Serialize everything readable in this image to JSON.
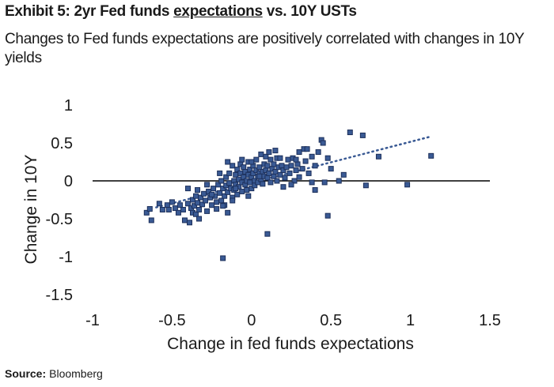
{
  "header": {
    "title_prefix": "Exhibit 5: 2yr Fed funds ",
    "title_underlined": "expectations",
    "title_suffix": " vs. 10Y USTs",
    "subtitle": "Changes to Fed funds expectations are positively correlated with changes in 10Y yields"
  },
  "footer": {
    "source_label": "Source:",
    "source_value": "Bloomberg"
  },
  "colors": {
    "marker_fill": "#3a5a94",
    "marker_edge": "#1c2f5a",
    "trendline": "#3a5a94",
    "axis": "#000000"
  },
  "chart_data": {
    "type": "scatter",
    "title": "",
    "xlabel": "Change in fed funds expectations",
    "ylabel": "Change in 10Y",
    "xlim": [
      -1,
      1.5
    ],
    "ylim": [
      -1.5,
      1
    ],
    "xticks": [
      -1,
      -0.5,
      0,
      0.5,
      1,
      1.5
    ],
    "xtick_labels": [
      "-1",
      "-0.5",
      "0",
      "0.5",
      "1",
      "1.5"
    ],
    "yticks": [
      1,
      0.5,
      0,
      -0.5,
      -1,
      -1.5
    ],
    "ytick_labels": [
      "1",
      "0.5",
      "0",
      "-0.5",
      "-1",
      "-1.5"
    ],
    "grid": false,
    "trendline": {
      "style": "dotted",
      "x": [
        -0.6,
        1.12
      ],
      "y": [
        -0.35,
        0.58
      ]
    },
    "series": [
      {
        "points": [
          [
            -0.66,
            -0.42
          ],
          [
            -0.64,
            -0.37
          ],
          [
            -0.63,
            -0.52
          ],
          [
            -0.58,
            -0.3
          ],
          [
            -0.56,
            -0.38
          ],
          [
            -0.53,
            -0.32
          ],
          [
            -0.52,
            -0.38
          ],
          [
            -0.5,
            -0.28
          ],
          [
            -0.48,
            -0.36
          ],
          [
            -0.46,
            -0.42
          ],
          [
            -0.45,
            -0.32
          ],
          [
            -0.43,
            -0.38
          ],
          [
            -0.42,
            -0.52
          ],
          [
            -0.4,
            -0.3
          ],
          [
            -0.39,
            -0.55
          ],
          [
            -0.38,
            -0.36
          ],
          [
            -0.37,
            -0.25
          ],
          [
            -0.37,
            -0.42
          ],
          [
            -0.36,
            -0.33
          ],
          [
            -0.35,
            -0.44
          ],
          [
            -0.35,
            -0.2
          ],
          [
            -0.34,
            -0.29
          ],
          [
            -0.34,
            -0.12
          ],
          [
            -0.33,
            -0.38
          ],
          [
            -0.33,
            -0.5
          ],
          [
            -0.32,
            -0.22
          ],
          [
            -0.31,
            -0.31
          ],
          [
            -0.3,
            -0.17
          ],
          [
            -0.29,
            -0.26
          ],
          [
            -0.28,
            -0.4
          ],
          [
            -0.27,
            -0.14
          ],
          [
            -0.26,
            -0.22
          ],
          [
            -0.25,
            -0.32
          ],
          [
            -0.24,
            -0.1
          ],
          [
            -0.23,
            -0.2
          ],
          [
            -0.22,
            -0.28
          ],
          [
            -0.22,
            -0.37
          ],
          [
            -0.21,
            -0.05
          ],
          [
            -0.2,
            -0.16
          ],
          [
            -0.19,
            -0.26
          ],
          [
            -0.19,
            0.0
          ],
          [
            -0.18,
            -0.1
          ],
          [
            -0.17,
            -0.2
          ],
          [
            -0.17,
            -0.32
          ],
          [
            -0.16,
            0.05
          ],
          [
            -0.16,
            -0.06
          ],
          [
            -0.15,
            -0.15
          ],
          [
            -0.15,
            -0.42
          ],
          [
            -0.14,
            0.1
          ],
          [
            -0.14,
            -0.03
          ],
          [
            -0.13,
            -0.1
          ],
          [
            -0.12,
            -0.22
          ],
          [
            -0.12,
            0.2
          ],
          [
            -0.11,
            0.0
          ],
          [
            -0.11,
            -0.12
          ],
          [
            -0.1,
            0.08
          ],
          [
            -0.1,
            -0.05
          ],
          [
            -0.09,
            -0.18
          ],
          [
            -0.09,
            0.15
          ],
          [
            -0.08,
            0.02
          ],
          [
            -0.08,
            -0.08
          ],
          [
            -0.07,
            0.22
          ],
          [
            -0.07,
            0.1
          ],
          [
            -0.06,
            -0.02
          ],
          [
            -0.06,
            -0.14
          ],
          [
            -0.05,
            0.05
          ],
          [
            -0.05,
            0.18
          ],
          [
            -0.04,
            -0.05
          ],
          [
            -0.04,
            0.12
          ],
          [
            -0.03,
            0.0
          ],
          [
            -0.03,
            -0.12
          ],
          [
            -0.02,
            0.08
          ],
          [
            -0.02,
            0.25
          ],
          [
            -0.01,
            -0.02
          ],
          [
            -0.01,
            0.15
          ],
          [
            0.0,
            0.05
          ],
          [
            0.0,
            -0.1
          ],
          [
            0.01,
            0.2
          ],
          [
            0.01,
            0.1
          ],
          [
            0.02,
            0.0
          ],
          [
            0.02,
            -0.06
          ],
          [
            0.03,
            0.14
          ],
          [
            0.03,
            0.28
          ],
          [
            0.04,
            0.06
          ],
          [
            0.04,
            -0.02
          ],
          [
            0.05,
            0.18
          ],
          [
            0.05,
            0.1
          ],
          [
            0.06,
            0.02
          ],
          [
            0.06,
            0.35
          ],
          [
            0.07,
            0.12
          ],
          [
            0.07,
            -0.04
          ],
          [
            0.08,
            0.22
          ],
          [
            0.08,
            0.06
          ],
          [
            0.09,
            0.32
          ],
          [
            0.09,
            0.14
          ],
          [
            0.1,
            0.04
          ],
          [
            0.1,
            0.2
          ],
          [
            0.11,
            0.1
          ],
          [
            0.12,
            0.28
          ],
          [
            0.12,
            -0.02
          ],
          [
            0.13,
            0.16
          ],
          [
            0.14,
            0.06
          ],
          [
            0.14,
            0.22
          ],
          [
            0.15,
            0.12
          ],
          [
            0.16,
            0.0
          ],
          [
            0.16,
            0.3
          ],
          [
            0.17,
            0.18
          ],
          [
            0.18,
            0.08
          ],
          [
            0.19,
            0.2
          ],
          [
            0.2,
            0.14
          ],
          [
            0.21,
            0.04
          ],
          [
            0.22,
            0.18
          ],
          [
            0.23,
            0.28
          ],
          [
            0.24,
            0.1
          ],
          [
            0.25,
            0.2
          ],
          [
            0.26,
            0.3
          ],
          [
            0.27,
            0.0
          ],
          [
            0.28,
            0.14
          ],
          [
            0.29,
            0.22
          ],
          [
            0.3,
            0.38
          ],
          [
            0.32,
            0.16
          ],
          [
            0.33,
            0.42
          ],
          [
            0.34,
            0.26
          ],
          [
            0.36,
            0.1
          ],
          [
            0.38,
            0.32
          ],
          [
            0.4,
            0.2
          ],
          [
            0.42,
            0.38
          ],
          [
            0.44,
            0.54
          ],
          [
            0.45,
            0.5
          ],
          [
            0.46,
            -0.02
          ],
          [
            0.48,
            0.3
          ],
          [
            0.5,
            0.16
          ],
          [
            0.55,
            0.0
          ],
          [
            0.58,
            0.08
          ],
          [
            0.62,
            0.64
          ],
          [
            0.7,
            0.6
          ],
          [
            0.8,
            0.32
          ],
          [
            0.72,
            -0.06
          ],
          [
            0.98,
            -0.05
          ],
          [
            1.13,
            0.33
          ],
          [
            0.48,
            -0.46
          ],
          [
            0.1,
            -0.7
          ],
          [
            -0.18,
            -1.02
          ],
          [
            -0.1,
            -0.1
          ],
          [
            -0.28,
            -0.05
          ],
          [
            -0.4,
            -0.1
          ],
          [
            -0.25,
            -0.18
          ],
          [
            0.35,
            0.42
          ],
          [
            0.28,
            0.28
          ],
          [
            0.15,
            0.4
          ],
          [
            -0.18,
            -0.33
          ],
          [
            -0.12,
            -0.26
          ],
          [
            0.05,
            0.06
          ],
          [
            -0.02,
            -0.2
          ],
          [
            0.25,
            -0.05
          ],
          [
            0.3,
            0.05
          ],
          [
            0.2,
            -0.08
          ],
          [
            0.0,
            0.25
          ],
          [
            -0.2,
            0.1
          ],
          [
            -0.15,
            0.25
          ],
          [
            0.38,
            -0.02
          ],
          [
            0.4,
            -0.12
          ],
          [
            -0.06,
            0.28
          ],
          [
            0.11,
            0.38
          ],
          [
            0.18,
            0.3
          ]
        ]
      }
    ]
  }
}
